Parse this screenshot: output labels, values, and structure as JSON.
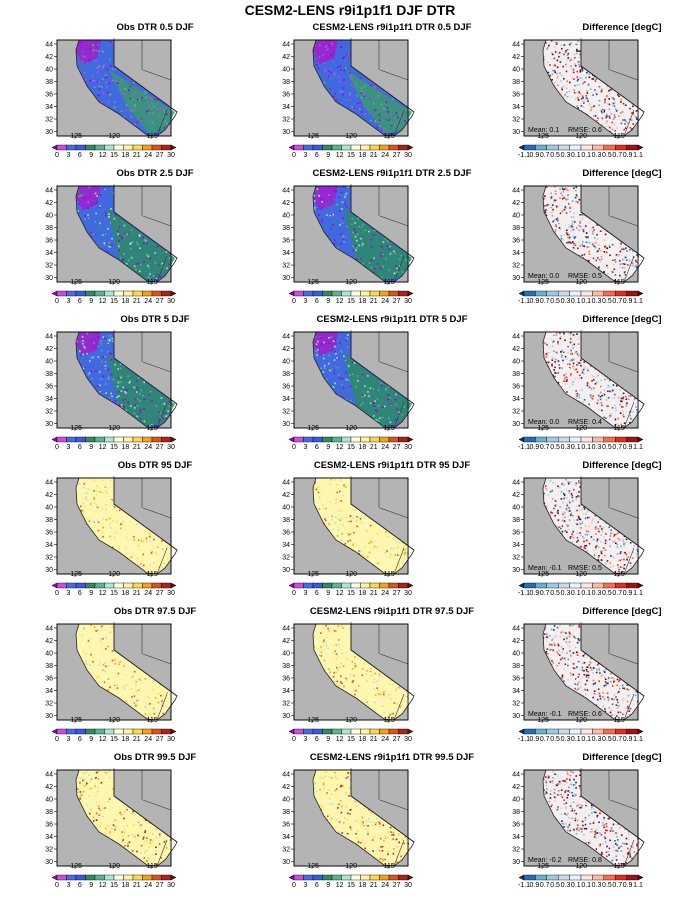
{
  "figure": {
    "title": "CESM2-LENS r9i1p1f1 DJF DTR",
    "lat_ticks": [
      "44",
      "42",
      "40",
      "38",
      "36",
      "34",
      "32",
      "30"
    ],
    "lon_ticks": [
      "-125",
      "-120",
      "-115"
    ],
    "dtr_colorbar_labels": [
      "0",
      "3",
      "6",
      "9",
      "12",
      "15",
      "18",
      "21",
      "24",
      "27",
      "30"
    ],
    "diff_colorbar_labels": [
      "-1.1",
      "0.9",
      "0.7",
      "0.5",
      "0.3",
      "0.1",
      "0.1",
      "0.3",
      "0.5",
      "0.7",
      "0.9",
      "1.1"
    ],
    "dtr_colors": [
      "#9b00d8",
      "#c84fd8",
      "#4a6be0",
      "#3b5bdb",
      "#2e8b66",
      "#5bb58a",
      "#a8e8d0",
      "#ffffe0",
      "#fff3a0",
      "#ffd54a",
      "#f4a21a",
      "#d8561e",
      "#a8241e",
      "#6a1008"
    ],
    "diff_colors": [
      "#08306b",
      "#2171b5",
      "#6baed6",
      "#9ecae1",
      "#c6dbef",
      "#eaf2fa",
      "#fbe6e0",
      "#fcbba1",
      "#fb6a4a",
      "#de2d26",
      "#a50f15",
      "#67000d"
    ],
    "map_background": "#b4b4b4"
  },
  "rows": [
    {
      "obs_title": "Obs DTR 0.5 DJF",
      "model_title": "CESM2-LENS r9i1p1f1 DTR 0.5 DJF",
      "diff_title": "Difference [degC]",
      "diff_mean": "Mean: 0.1",
      "diff_rmse": "RMSE: 0.6"
    },
    {
      "obs_title": "Obs DTR 2.5 DJF",
      "model_title": "CESM2-LENS r9i1p1f1 DTR 2.5 DJF",
      "diff_title": "Difference [degC]",
      "diff_mean": "Mean: 0.0",
      "diff_rmse": "RMSE: 0.5"
    },
    {
      "obs_title": "Obs DTR 5 DJF",
      "model_title": "CESM2-LENS r9i1p1f1 DTR 5 DJF",
      "diff_title": "Difference [degC]",
      "diff_mean": "Mean: 0.0",
      "diff_rmse": "RMSE: 0.4"
    },
    {
      "obs_title": "Obs DTR 95 DJF",
      "model_title": "CESM2-LENS r9i1p1f1 DTR 95 DJF",
      "diff_title": "Difference [degC]",
      "diff_mean": "Mean: -0.1",
      "diff_rmse": "RMSE: 0.5"
    },
    {
      "obs_title": "Obs DTR 97.5 DJF",
      "model_title": "CESM2-LENS r9i1p1f1 DTR 97.5 DJF",
      "diff_title": "Difference [degC]",
      "diff_mean": "Mean: -0.1",
      "diff_rmse": "RMSE: 0.6"
    },
    {
      "obs_title": "Obs DTR 99.5 DJF",
      "model_title": "CESM2-LENS r9i1p1f1 DTR 99.5 DJF",
      "diff_title": "Difference [degC]",
      "diff_mean": "Mean: -0.2",
      "diff_rmse": "RMSE: 0.8"
    }
  ]
}
